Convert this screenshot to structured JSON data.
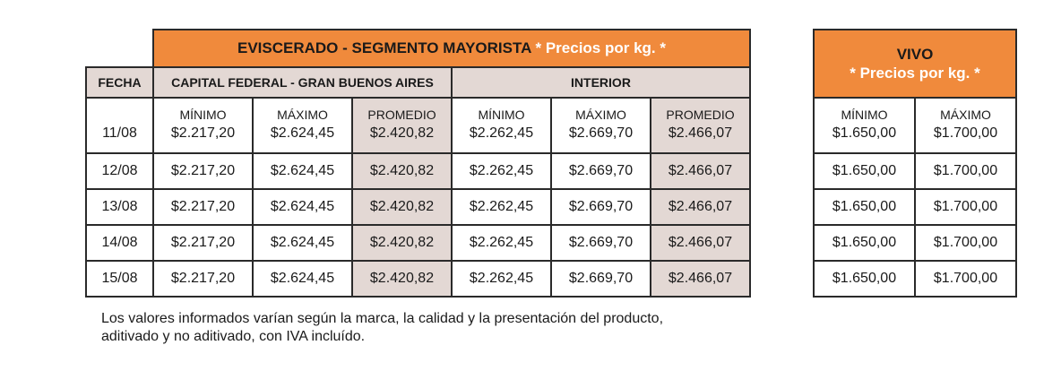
{
  "eviscerado": {
    "title": "EVISCERADO - SEGMENTO MAYORISTA",
    "title_note": "* Precios por kg. *",
    "fecha_header": "FECHA",
    "region_capital": "CAPITAL FEDERAL - GRAN BUENOS AIRES",
    "region_interior": "INTERIOR",
    "col_min": "MÍNIMO",
    "col_max": "MÁXIMO",
    "col_prom": "PROMEDIO",
    "rows": [
      {
        "fecha": "11/08",
        "cap_min": "$2.217,20",
        "cap_max": "$2.624,45",
        "cap_prom": "$2.420,82",
        "int_min": "$2.262,45",
        "int_max": "$2.669,70",
        "int_prom": "$2.466,07"
      },
      {
        "fecha": "12/08",
        "cap_min": "$2.217,20",
        "cap_max": "$2.624,45",
        "cap_prom": "$2.420,82",
        "int_min": "$2.262,45",
        "int_max": "$2.669,70",
        "int_prom": "$2.466,07"
      },
      {
        "fecha": "13/08",
        "cap_min": "$2.217,20",
        "cap_max": "$2.624,45",
        "cap_prom": "$2.420,82",
        "int_min": "$2.262,45",
        "int_max": "$2.669,70",
        "int_prom": "$2.466,07"
      },
      {
        "fecha": "14/08",
        "cap_min": "$2.217,20",
        "cap_max": "$2.624,45",
        "cap_prom": "$2.420,82",
        "int_min": "$2.262,45",
        "int_max": "$2.669,70",
        "int_prom": "$2.466,07"
      },
      {
        "fecha": "15/08",
        "cap_min": "$2.217,20",
        "cap_max": "$2.624,45",
        "cap_prom": "$2.420,82",
        "int_min": "$2.262,45",
        "int_max": "$2.669,70",
        "int_prom": "$2.466,07"
      }
    ]
  },
  "vivo": {
    "title": "VIVO",
    "title_note": "* Precios por kg. *",
    "col_min": "MÍNIMO",
    "col_max": "MÁXIMO",
    "rows": [
      {
        "min": "$1.650,00",
        "max": "$1.700,00"
      },
      {
        "min": "$1.650,00",
        "max": "$1.700,00"
      },
      {
        "min": "$1.650,00",
        "max": "$1.700,00"
      },
      {
        "min": "$1.650,00",
        "max": "$1.700,00"
      },
      {
        "min": "$1.650,00",
        "max": "$1.700,00"
      }
    ]
  },
  "note": {
    "line1": "Los valores informados varían según la marca, la calidad y la presentación del producto,",
    "line2": "aditivado y no aditivado, con IVA incluído."
  },
  "colors": {
    "accent_orange": "#f08a3c",
    "shade": "#e3d8d4",
    "border": "#2a2a2a"
  }
}
